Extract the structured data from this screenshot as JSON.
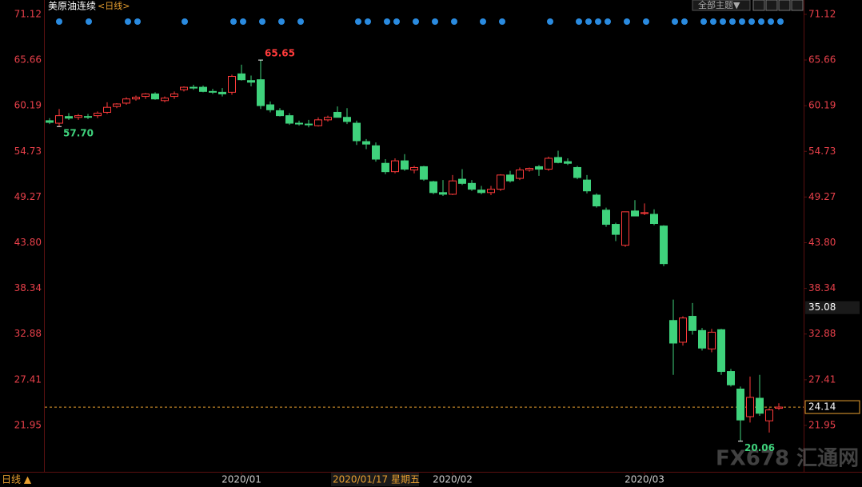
{
  "chart_data": {
    "type": "candlestick",
    "title": "美原油连续",
    "period": "<日线>",
    "theme_button": "全部主题▼",
    "bottom_tab": "日线 ▲",
    "watermark": "FX678 汇通网",
    "crosshair_date": "2020/01/17 星期五",
    "crosshair_value": 35.08,
    "last_price": 24.14,
    "up_color": "#ff3b3b",
    "down_color": "#3fd27c",
    "axis_label_color": "#e8404a",
    "ylim": [
      16.4,
      71.4
    ],
    "yticks": [
      21.95,
      27.41,
      32.88,
      38.34,
      {
        "value": 43.8,
        "label": "43.80"
      },
      49.27,
      54.73,
      60.19,
      65.66,
      71.12
    ],
    "annotations": [
      {
        "value": 65.65,
        "label": "65.65",
        "side": "high"
      },
      {
        "value": 57.7,
        "label": "57.70",
        "side": "low"
      },
      {
        "value": 20.06,
        "label": "20.06",
        "side": "low"
      }
    ],
    "categories": [
      null,
      null,
      null,
      null,
      null,
      null,
      null,
      null,
      null,
      null,
      null,
      null,
      null,
      null,
      null,
      null,
      null,
      null,
      null,
      null,
      "2020/01",
      null,
      null,
      null,
      null,
      null,
      null,
      null,
      null,
      null,
      null,
      null,
      null,
      null,
      null,
      null,
      null,
      null,
      null,
      null,
      null,
      null,
      "2020/02",
      null,
      null,
      null,
      null,
      null,
      null,
      null,
      null,
      null,
      null,
      null,
      null,
      null,
      null,
      null,
      null,
      null,
      null,
      null,
      "2020/03",
      null,
      null,
      null,
      null,
      null,
      null,
      null,
      null,
      null,
      null,
      null,
      null,
      null,
      null
    ],
    "open": [
      58.4,
      58.1,
      58.9,
      58.8,
      58.9,
      59.0,
      59.4,
      60.1,
      60.5,
      61.0,
      61.3,
      61.6,
      60.8,
      61.3,
      62.1,
      62.4,
      62.4,
      61.9,
      61.8,
      61.8,
      64.0,
      63.2,
      63.3,
      60.3,
      59.6,
      59.0,
      58.1,
      58.0,
      57.8,
      58.5,
      59.4,
      58.8,
      58.1,
      55.9,
      55.4,
      53.3,
      52.3,
      53.6,
      52.5,
      52.9,
      51.1,
      49.8,
      49.6,
      51.4,
      50.9,
      50.1,
      49.8,
      50.2,
      51.9,
      51.5,
      52.5,
      52.9,
      52.6,
      54.0,
      53.5,
      52.8,
      51.3,
      49.5,
      47.7,
      46.0,
      43.5,
      47.6,
      47.3,
      47.2,
      45.8,
      34.5,
      31.9,
      35.0,
      33.3,
      31.1,
      33.4,
      28.4,
      26.3,
      23.0,
      25.2,
      22.5,
      24.0
    ],
    "high": [
      58.7,
      59.8,
      59.3,
      59.2,
      59.2,
      59.5,
      60.6,
      60.5,
      61.2,
      61.4,
      61.7,
      61.8,
      61.3,
      61.9,
      62.5,
      62.7,
      62.6,
      62.2,
      62.3,
      63.9,
      65.1,
      63.8,
      65.65,
      60.7,
      59.9,
      59.3,
      58.4,
      58.5,
      58.8,
      59.0,
      60.1,
      59.9,
      58.4,
      56.2,
      55.8,
      53.8,
      53.9,
      54.4,
      53.0,
      53.0,
      51.2,
      51.3,
      51.9,
      52.6,
      51.3,
      50.6,
      50.6,
      52.0,
      52.4,
      52.8,
      52.8,
      53.1,
      54.1,
      54.8,
      53.9,
      53.0,
      51.9,
      49.7,
      48.0,
      46.2,
      47.5,
      48.9,
      48.5,
      47.8,
      45.9,
      37.0,
      35.0,
      36.6,
      33.6,
      33.5,
      33.5,
      28.7,
      26.6,
      27.8,
      28.0,
      24.0,
      24.6
    ],
    "low": [
      58.0,
      57.7,
      58.5,
      58.5,
      58.6,
      58.7,
      59.2,
      59.9,
      60.3,
      60.8,
      61.0,
      60.9,
      60.6,
      61.0,
      61.9,
      62.1,
      61.8,
      61.6,
      61.3,
      61.5,
      63.2,
      62.5,
      59.8,
      59.4,
      58.9,
      57.9,
      57.8,
      57.6,
      57.7,
      58.3,
      58.8,
      58.0,
      55.5,
      55.0,
      53.5,
      52.0,
      52.1,
      52.4,
      52.1,
      51.2,
      49.6,
      49.4,
      49.5,
      50.7,
      50.0,
      49.6,
      49.5,
      50.0,
      51.0,
      51.3,
      52.3,
      51.8,
      52.4,
      53.3,
      53.1,
      51.4,
      49.7,
      48.0,
      45.7,
      44.0,
      43.3,
      47.0,
      47.1,
      45.9,
      41.0,
      28.0,
      31.5,
      32.8,
      30.9,
      30.7,
      28.0,
      26.6,
      20.06,
      22.3,
      23.1,
      21.1,
      23.8
    ],
    "close": [
      58.2,
      59.0,
      58.7,
      59.0,
      58.8,
      59.3,
      60.0,
      60.4,
      61.0,
      61.2,
      61.6,
      61.0,
      61.1,
      61.6,
      62.4,
      62.3,
      61.9,
      61.8,
      61.6,
      63.7,
      63.3,
      63.0,
      60.2,
      59.7,
      59.0,
      58.1,
      58.0,
      57.9,
      58.5,
      58.8,
      58.8,
      58.3,
      56.0,
      55.6,
      53.8,
      52.3,
      53.6,
      52.6,
      52.8,
      51.4,
      49.8,
      49.6,
      51.2,
      50.9,
      50.2,
      49.8,
      50.2,
      51.9,
      51.2,
      52.5,
      52.7,
      52.6,
      53.9,
      53.4,
      53.3,
      51.6,
      50.0,
      48.2,
      46.0,
      44.8,
      47.5,
      47.0,
      47.4,
      46.1,
      41.3,
      31.8,
      34.8,
      33.3,
      31.2,
      33.1,
      28.4,
      26.8,
      22.6,
      25.3,
      23.4,
      23.8,
      24.14
    ]
  }
}
